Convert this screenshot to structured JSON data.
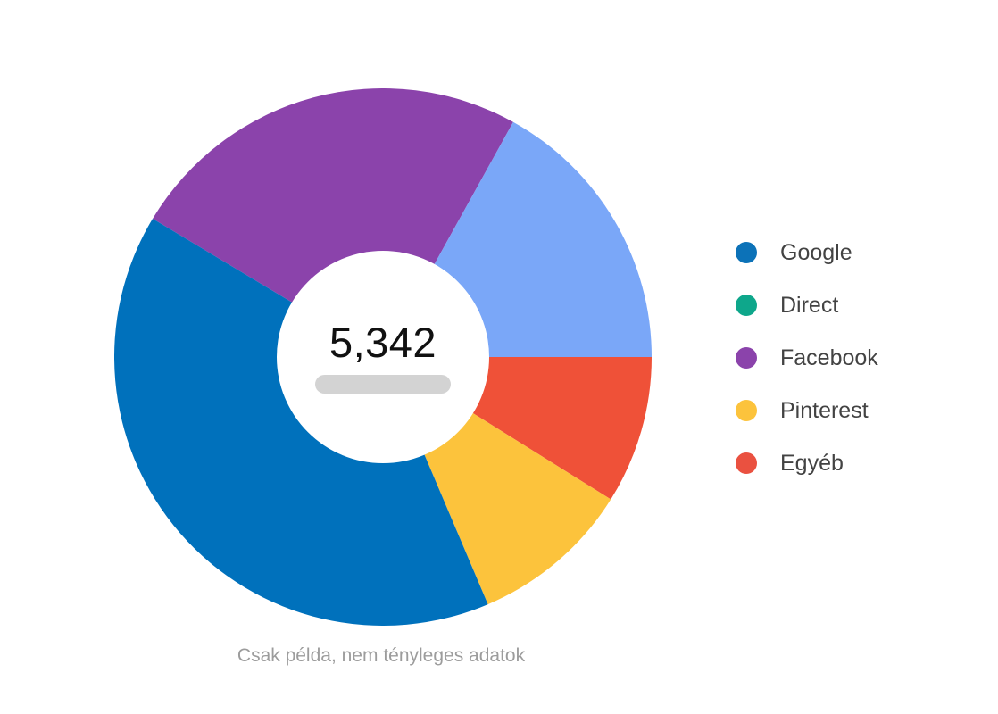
{
  "chart": {
    "total_label": "5,342",
    "caption": "Csak példa, nem tényleges adatok"
  },
  "chart_data": {
    "type": "pie",
    "subtype": "donut",
    "title": "",
    "total_label": "5,342",
    "total_value": 5342,
    "caption": "Csak példa, nem tényleges adatok",
    "start_angle_deg_clockwise_from_top": -59,
    "segments": [
      {
        "label": "Facebook",
        "color": "#8B43AB",
        "sweep_deg": 88,
        "percent": 24.4
      },
      {
        "label": "Direct",
        "color": "#7AA7F8",
        "sweep_deg": 61,
        "percent": 16.9
      },
      {
        "label": "Egyéb",
        "color": "#EF5138",
        "sweep_deg": 32,
        "percent": 8.9
      },
      {
        "label": "Pinterest",
        "color": "#FCC33C",
        "sweep_deg": 35,
        "percent": 9.7
      },
      {
        "label": "Google",
        "color": "#0071BC",
        "sweep_deg": 144,
        "percent": 40.0
      }
    ],
    "legend": [
      {
        "label": "Google",
        "dot_color": "#0C72B8"
      },
      {
        "label": "Direct",
        "dot_color": "#0EA78B"
      },
      {
        "label": "Facebook",
        "dot_color": "#8B43AB"
      },
      {
        "label": "Pinterest",
        "dot_color": "#FCC33C"
      },
      {
        "label": "Egyéb",
        "dot_color": "#EA5140"
      }
    ],
    "legend_position": "right",
    "center_pill_color": "#d3d3d3"
  }
}
